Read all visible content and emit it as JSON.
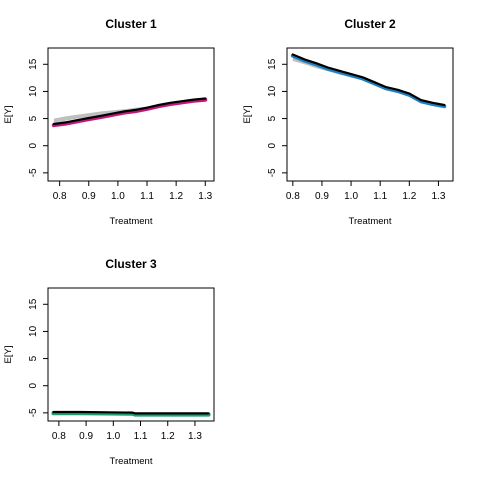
{
  "chart_data": [
    {
      "type": "line",
      "title": "Cluster 1",
      "xlabel": "Treatment",
      "ylabel": "E[Y]",
      "xlim": [
        0.76,
        1.33
      ],
      "ylim": [
        -6.5,
        18
      ],
      "xticks": [
        "0.8",
        "0.9",
        "1.0",
        "1.1",
        "1.2",
        "1.3"
      ],
      "yticks": [
        "-5",
        "0",
        "5",
        "10",
        "15"
      ],
      "band_color": "#bfbfbf",
      "line_color": "#000000",
      "tail_color": "#c0187c",
      "x": [
        0.78,
        0.82,
        0.86,
        0.9,
        0.94,
        0.98,
        1.02,
        1.06,
        1.1,
        1.14,
        1.18,
        1.22,
        1.26,
        1.3
      ],
      "y": [
        4.0,
        4.3,
        4.7,
        5.1,
        5.5,
        5.9,
        6.3,
        6.6,
        7.0,
        7.5,
        7.9,
        8.2,
        8.5,
        8.7
      ],
      "lower": [
        4.2,
        4.6,
        5.0,
        5.3,
        5.6,
        5.9,
        6.2,
        6.5,
        6.8,
        7.1,
        7.4,
        7.7,
        8.0,
        8.2
      ],
      "upper": [
        5.0,
        5.4,
        5.7,
        6.0,
        6.3,
        6.5,
        6.7,
        7.0,
        7.2,
        7.5,
        7.8,
        8.1,
        8.4,
        8.6
      ]
    },
    {
      "type": "line",
      "title": "Cluster 2",
      "xlabel": "Treatment",
      "ylabel": "E[Y]",
      "xlim": [
        0.78,
        1.35
      ],
      "ylim": [
        -6.5,
        18
      ],
      "xticks": [
        "0.8",
        "0.9",
        "1.0",
        "1.1",
        "1.2",
        "1.3"
      ],
      "yticks": [
        "-5",
        "0",
        "5",
        "10",
        "15"
      ],
      "band_color": "#bfbfbf",
      "line_color": "#000000",
      "tail_color": "#1f7fbf",
      "x": [
        0.8,
        0.84,
        0.88,
        0.92,
        0.96,
        1.0,
        1.04,
        1.08,
        1.12,
        1.16,
        1.2,
        1.24,
        1.28,
        1.32
      ],
      "y": [
        16.8,
        15.9,
        15.2,
        14.4,
        13.8,
        13.2,
        12.6,
        11.7,
        10.8,
        10.3,
        9.6,
        8.4,
        7.9,
        7.5
      ],
      "lower": [
        15.6,
        15.0,
        14.3,
        13.7,
        13.1,
        12.6,
        12.2,
        11.7,
        10.8,
        10.3,
        9.6,
        8.4,
        7.9,
        7.5
      ],
      "upper": [
        16.6,
        15.9,
        15.2,
        14.5,
        13.8,
        13.2,
        12.6,
        11.8,
        10.9,
        10.4,
        9.7,
        8.5,
        8.0,
        7.6
      ]
    },
    {
      "type": "line",
      "title": "Cluster 3",
      "xlabel": "Treatment",
      "ylabel": "E[Y]",
      "xlim": [
        0.76,
        1.37
      ],
      "ylim": [
        -6.5,
        18
      ],
      "xticks": [
        "0.8",
        "0.9",
        "1.0",
        "1.1",
        "1.2",
        "1.3"
      ],
      "yticks": [
        "-5",
        "0",
        "5",
        "10",
        "15"
      ],
      "band_color": "#bfbfbf",
      "line_color": "#000000",
      "tail_color": "#1f9f6f",
      "x": [
        0.78,
        0.88,
        0.98,
        1.07,
        1.08,
        1.2,
        1.35
      ],
      "y": [
        -4.85,
        -4.85,
        -4.9,
        -4.95,
        -5.1,
        -5.1,
        -5.1
      ],
      "lower": [
        -5.05,
        -5.05,
        -5.1,
        -5.15,
        -5.25,
        -5.25,
        -5.25
      ],
      "upper": [
        -4.7,
        -4.7,
        -4.75,
        -4.8,
        -4.95,
        -4.95,
        -4.95
      ]
    }
  ]
}
